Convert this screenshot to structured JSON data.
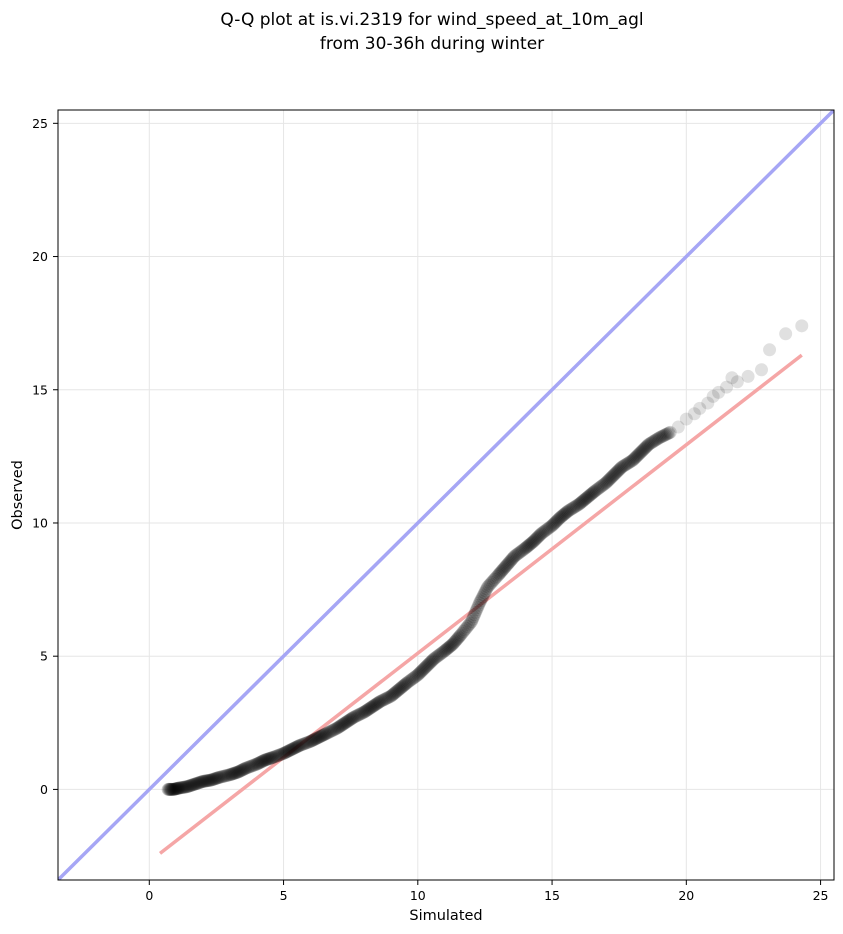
{
  "chart_data": {
    "type": "scatter",
    "title": "Q-Q plot at is.vi.2319 for wind_speed_at_10m_agl",
    "subtitle": "from 30-36h during winter",
    "xlabel": "Simulated",
    "ylabel": "Observed",
    "xlim": [
      -3.4,
      25.5
    ],
    "ylim": [
      -3.4,
      25.5
    ],
    "xticks": [
      0,
      5,
      10,
      15,
      20,
      25
    ],
    "yticks": [
      0,
      5,
      10,
      15,
      20,
      25
    ],
    "grid": true,
    "series": [
      {
        "kind": "quantile-points",
        "color": "#000000",
        "x": [
          0.7,
          0.9,
          1.1,
          1.4,
          1.7,
          2.0,
          2.3,
          2.6,
          3.0,
          3.3,
          3.6,
          4.0,
          4.3,
          4.6,
          5.0,
          5.3,
          5.6,
          6.0,
          6.3,
          6.6,
          7.0,
          7.3,
          7.6,
          8.0,
          8.3,
          8.6,
          9.0,
          9.3,
          9.6,
          10.0,
          10.3,
          10.6,
          11.0,
          11.3,
          11.6,
          12.0,
          12.3,
          12.6,
          13.0,
          13.3,
          13.6,
          14.0,
          14.3,
          14.6,
          15.0,
          15.3,
          15.6,
          16.0,
          16.3,
          16.6,
          17.0,
          17.3,
          17.6,
          18.0,
          18.3,
          18.6,
          19.0,
          19.4,
          19.7,
          20.0,
          20.3,
          20.5,
          20.8,
          21.0,
          21.2,
          21.5,
          21.7,
          21.9,
          22.3,
          22.8,
          23.1,
          23.7,
          24.3
        ],
        "y": [
          0.0,
          0.0,
          0.05,
          0.1,
          0.2,
          0.3,
          0.35,
          0.45,
          0.55,
          0.65,
          0.8,
          0.95,
          1.1,
          1.2,
          1.35,
          1.5,
          1.65,
          1.8,
          1.95,
          2.1,
          2.3,
          2.5,
          2.7,
          2.9,
          3.1,
          3.3,
          3.5,
          3.75,
          4.0,
          4.3,
          4.6,
          4.9,
          5.2,
          5.45,
          5.8,
          6.3,
          7.0,
          7.6,
          8.05,
          8.4,
          8.75,
          9.05,
          9.3,
          9.6,
          9.9,
          10.2,
          10.45,
          10.7,
          10.95,
          11.2,
          11.5,
          11.8,
          12.1,
          12.35,
          12.65,
          12.95,
          13.2,
          13.4,
          13.6,
          13.9,
          14.1,
          14.3,
          14.5,
          14.75,
          14.9,
          15.1,
          15.45,
          15.3,
          15.5,
          15.75,
          16.5,
          17.1,
          17.4
        ]
      },
      {
        "kind": "one-to-one-line",
        "color": "#a6a6f5",
        "x": [
          -3.4,
          25.5
        ],
        "y": [
          -3.4,
          25.5
        ]
      },
      {
        "kind": "fit-line",
        "color": "#f5a6a6",
        "x": [
          0.4,
          24.3
        ],
        "y": [
          -2.4,
          16.3
        ]
      }
    ]
  }
}
